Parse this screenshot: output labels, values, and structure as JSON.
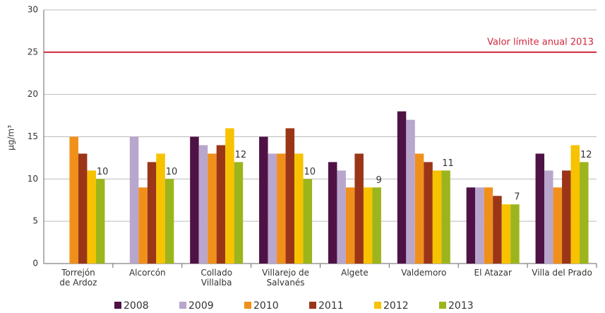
{
  "chart_data": {
    "type": "bar",
    "y_label": "µg/m³",
    "categories": [
      "Torrejón\nde Ardoz",
      "Alcorcón",
      "Collado\nVillalba",
      "Villarejo de\nSalvanés",
      "Algete",
      "Valdemoro",
      "El Atazar",
      "Villa del Prado"
    ],
    "series": [
      {
        "name": "2008",
        "color": "#4f1245",
        "values": [
          null,
          null,
          15,
          15,
          12,
          18,
          9,
          13
        ]
      },
      {
        "name": "2009",
        "color": "#b9a6cc",
        "values": [
          null,
          15,
          14,
          13,
          11,
          17,
          9,
          11
        ]
      },
      {
        "name": "2010",
        "color": "#f0901a",
        "values": [
          15,
          9,
          13,
          13,
          9,
          13,
          9,
          9
        ]
      },
      {
        "name": "2011",
        "color": "#9b3518",
        "values": [
          13,
          12,
          14,
          16,
          13,
          12,
          8,
          11
        ]
      },
      {
        "name": "2012",
        "color": "#f7c200",
        "values": [
          11,
          13,
          16,
          13,
          9,
          11,
          7,
          14
        ]
      },
      {
        "name": "2013",
        "color": "#9cb51c",
        "values": [
          10,
          10,
          12,
          10,
          9,
          11,
          7,
          12
        ],
        "show_labels": true
      }
    ],
    "reference_line": {
      "value": 25,
      "label": "Valor límite anual 2013",
      "color": "#d0273c"
    },
    "ylim": [
      0,
      30
    ],
    "yticks": [
      0,
      5,
      10,
      15,
      20,
      25,
      30
    ],
    "grid": true
  }
}
